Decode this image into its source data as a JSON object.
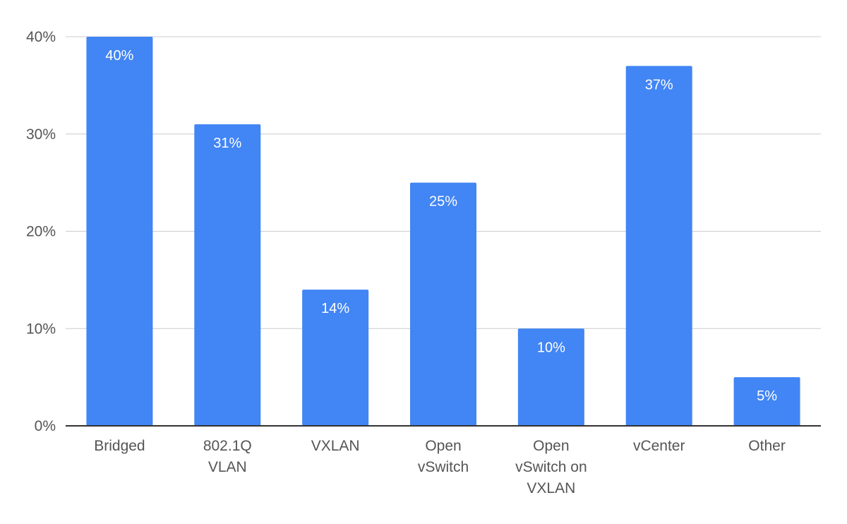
{
  "chart_data": {
    "type": "bar",
    "title": "",
    "xlabel": "",
    "ylabel": "",
    "categories": [
      [
        "Bridged"
      ],
      [
        "802.1Q",
        "VLAN"
      ],
      [
        "VXLAN"
      ],
      [
        "Open",
        "vSwitch"
      ],
      [
        "Open",
        "vSwitch on",
        "VXLAN"
      ],
      [
        "vCenter"
      ],
      [
        "Other"
      ]
    ],
    "values": [
      40,
      31,
      14,
      25,
      10,
      37,
      5
    ],
    "value_labels": [
      "40%",
      "31%",
      "14%",
      "25%",
      "10%",
      "37%",
      "5%"
    ],
    "ylim": [
      0,
      40
    ],
    "yticks": [
      0,
      10,
      20,
      30,
      40
    ],
    "ytick_labels": [
      "0%",
      "10%",
      "20%",
      "30%",
      "40%"
    ],
    "grid": true,
    "legend": "none",
    "bar_color": "#4285f4"
  }
}
